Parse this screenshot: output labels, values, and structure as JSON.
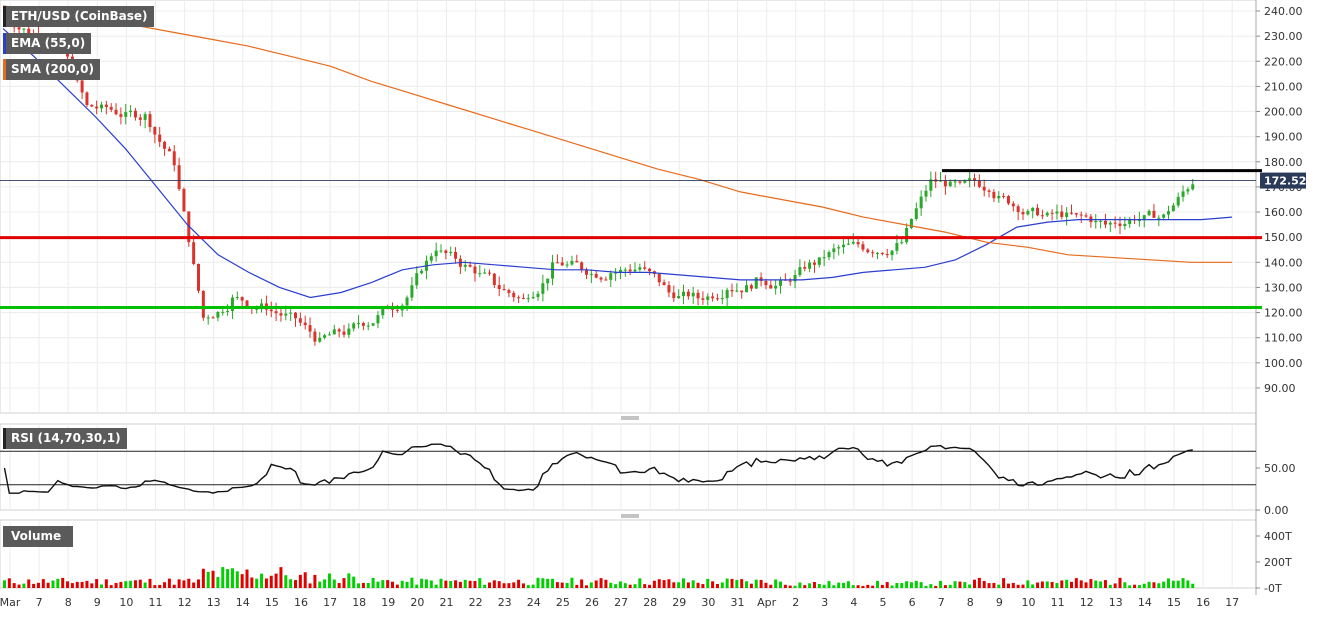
{
  "chart_data": {
    "type": "candlestick",
    "panels": {
      "price": {
        "title": "ETH/USD (CoinBase)",
        "ylim": [
          80,
          245
        ],
        "y_ticks": [
          90,
          100,
          110,
          120,
          130,
          140,
          150,
          160,
          170,
          180,
          190,
          200,
          210,
          220,
          230,
          240
        ],
        "current_price": 172.52,
        "resistance_level": 176.5,
        "support_levels": [
          {
            "value": 149.8,
            "color": "#e00000"
          },
          {
            "value": 122.0,
            "color": "#00c000"
          }
        ],
        "indicators": [
          {
            "name": "EMA (55,0)",
            "color": "#2a3ecf"
          },
          {
            "name": "SMA (200,0)",
            "color": "#e86a1c"
          }
        ]
      },
      "rsi": {
        "title": "RSI (14,70,30,1)",
        "overbought": 70,
        "oversold": 30,
        "y_ticks": [
          0,
          50
        ],
        "tick_labels": [
          "0.00",
          "50.00"
        ]
      },
      "volume": {
        "title": "Volume",
        "tick_labels": [
          "-0T",
          "200T",
          "400T"
        ]
      }
    },
    "x_tick_labels": [
      "Mar",
      "7",
      "8",
      "9",
      "10",
      "11",
      "12",
      "13",
      "14",
      "15",
      "16",
      "17",
      "18",
      "19",
      "20",
      "21",
      "22",
      "23",
      "24",
      "25",
      "26",
      "27",
      "28",
      "29",
      "30",
      "31",
      "Apr",
      "2",
      "3",
      "4",
      "5",
      "6",
      "7",
      "8",
      "9",
      "10",
      "11",
      "12",
      "13",
      "14",
      "15",
      "16",
      "17"
    ],
    "daily_close": [
      232,
      228,
      202,
      200,
      198,
      180,
      118,
      125,
      122,
      118,
      108,
      112,
      118,
      126,
      146,
      138,
      132,
      125,
      138,
      138,
      136,
      138,
      128,
      126,
      130,
      132,
      132,
      140,
      146,
      145,
      148,
      172,
      170,
      170,
      162,
      158,
      158,
      155,
      158,
      158,
      172
    ],
    "ema_55": [
      233,
      222,
      210,
      198,
      185,
      170,
      155,
      143,
      136,
      130,
      126,
      128,
      132,
      137,
      139,
      140,
      139,
      138,
      137,
      137,
      136,
      136,
      135,
      134,
      133,
      133,
      133,
      134,
      136,
      137,
      138,
      141,
      147,
      154,
      156,
      157,
      157,
      157,
      157,
      157,
      158
    ],
    "sma_200": [
      242,
      240,
      238,
      235,
      232,
      229,
      226,
      222,
      218,
      212,
      207,
      202,
      197,
      192,
      187,
      182,
      177,
      173,
      168,
      165,
      162,
      158,
      155,
      152,
      148,
      146,
      143,
      142,
      141,
      140,
      140
    ]
  }
}
